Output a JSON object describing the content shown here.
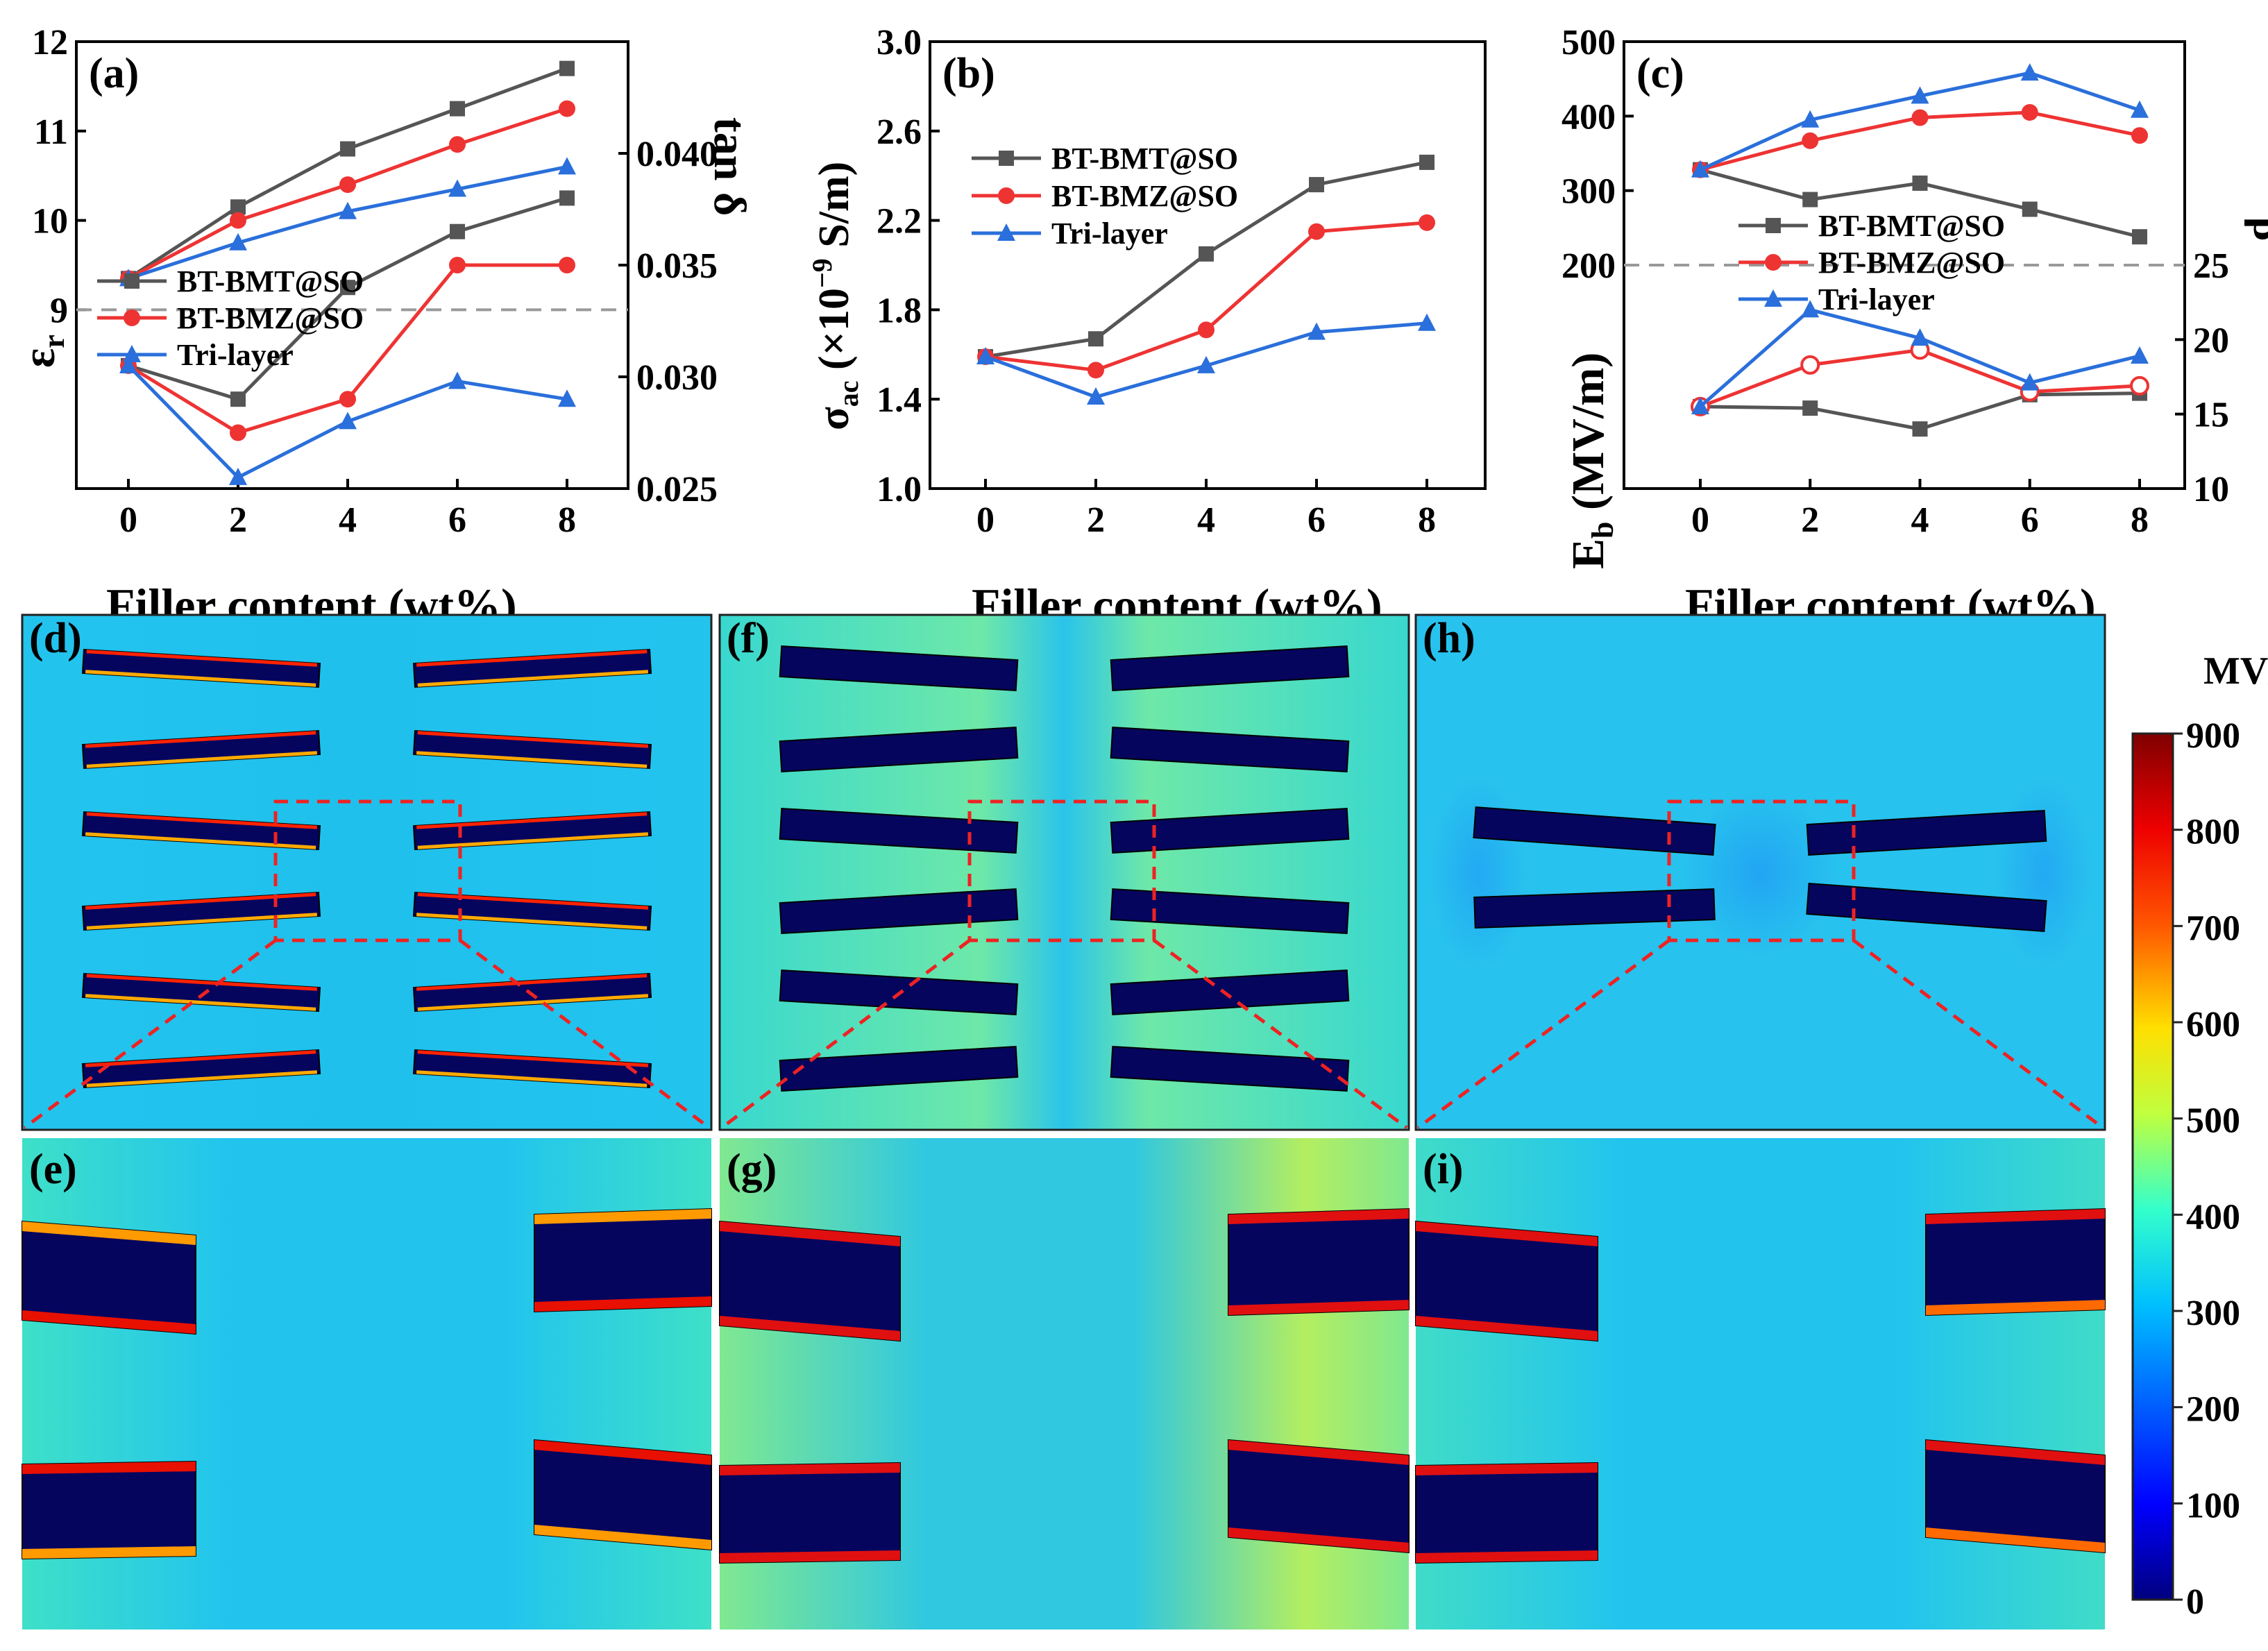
{
  "colors": {
    "bmt": "#555555",
    "bmz": "#ee3333",
    "tri": "#2a6fdb",
    "cmap": [
      "#00007f",
      "#0000ff",
      "#007fff",
      "#00ffff",
      "#7fff7f",
      "#ffff00",
      "#ff7f00",
      "#ff0000",
      "#7f0000"
    ]
  },
  "chart_data": [
    {
      "type": "line",
      "panel": "(a)",
      "xlabel": "Filler content (wt%)",
      "ylabel_left_main": "ε",
      "ylabel_left_sub": "r",
      "ylabel_right": "tan δ",
      "x": [
        0,
        2,
        4,
        6,
        8
      ],
      "xticks": [
        "0",
        "2",
        "4",
        "6",
        "8"
      ],
      "left_ylim": [
        7,
        12
      ],
      "left_ticks": [
        "9",
        "10",
        "11",
        "12"
      ],
      "left_tick_values": [
        9,
        10,
        11,
        12
      ],
      "right_ylim": [
        0.025,
        0.045
      ],
      "right_ticks": [
        "0.040",
        "0.035",
        "0.030",
        "0.025"
      ],
      "right_tick_values": [
        0.04,
        0.035,
        0.03,
        0.025
      ],
      "divider_y_left": 9,
      "series": [
        {
          "name": "BT-BMT@SO",
          "axis": "left",
          "marker": "square",
          "values": [
            9.35,
            10.15,
            10.8,
            11.25,
            11.7
          ]
        },
        {
          "name": "BT-BMZ@SO",
          "axis": "left",
          "marker": "circle",
          "values": [
            9.35,
            10.0,
            10.4,
            10.85,
            11.25
          ]
        },
        {
          "name": "Tri-layer",
          "axis": "left",
          "marker": "triangle",
          "values": [
            9.35,
            9.75,
            10.1,
            10.35,
            10.6
          ]
        },
        {
          "name": "BT-BMT@SO",
          "axis": "right",
          "marker": "square",
          "values": [
            0.0305,
            0.029,
            0.034,
            0.0365,
            0.038
          ]
        },
        {
          "name": "BT-BMZ@SO",
          "axis": "right",
          "marker": "circle",
          "values": [
            0.0305,
            0.0275,
            0.029,
            0.035,
            0.035
          ]
        },
        {
          "name": "Tri-layer",
          "axis": "right",
          "marker": "triangle",
          "values": [
            0.0305,
            0.0255,
            0.028,
            0.0298,
            0.029
          ]
        }
      ],
      "legend": [
        "BT-BMT@SO",
        "BT-BMZ@SO",
        "Tri-layer"
      ]
    },
    {
      "type": "line",
      "panel": "(b)",
      "xlabel": "Filler content (wt%)",
      "ylabel_main": "σ",
      "ylabel_sub": "ac",
      "ylabel_rest": " (×10",
      "ylabel_sup": "−9",
      "ylabel_end": " S/m)",
      "x": [
        0,
        2,
        4,
        6,
        8
      ],
      "xticks": [
        "0",
        "2",
        "4",
        "6",
        "8"
      ],
      "ylim": [
        1.0,
        3.0
      ],
      "yticks": [
        "1.0",
        "1.4",
        "1.8",
        "2.2",
        "2.6",
        "3.0"
      ],
      "ytick_values": [
        1.0,
        1.4,
        1.8,
        2.2,
        2.6,
        3.0
      ],
      "series": [
        {
          "name": "BT-BMT@SO",
          "marker": "square",
          "values": [
            1.59,
            1.67,
            2.05,
            2.36,
            2.46
          ]
        },
        {
          "name": "BT-BMZ@SO",
          "marker": "circle",
          "values": [
            1.59,
            1.53,
            1.71,
            2.15,
            2.19
          ]
        },
        {
          "name": "Tri-layer",
          "marker": "triangle",
          "values": [
            1.59,
            1.41,
            1.55,
            1.7,
            1.74
          ]
        }
      ],
      "legend": [
        "BT-BMT@SO",
        "BT-BMZ@SO",
        "Tri-layer"
      ]
    },
    {
      "type": "line",
      "panel": "(c)",
      "xlabel": "Filler content (wt%)",
      "ylabel_left_main": "E",
      "ylabel_left_sub": "b",
      "ylabel_left_rest": " (MV/m)",
      "ylabel_right": "β",
      "x": [
        0,
        2,
        4,
        6,
        8
      ],
      "xticks": [
        "0",
        "2",
        "4",
        "6",
        "8"
      ],
      "left_ylim": [
        -100,
        500
      ],
      "left_ticks": [
        "200",
        "300",
        "400",
        "500"
      ],
      "left_tick_values": [
        200,
        300,
        400,
        500
      ],
      "right_ylim": [
        10,
        40
      ],
      "right_ticks": [
        "10",
        "15",
        "20",
        "25"
      ],
      "right_tick_values": [
        10,
        15,
        20,
        25
      ],
      "divider_y_left": 200,
      "series": [
        {
          "name": "BT-BMT@SO",
          "axis": "left",
          "marker": "square",
          "values": [
            328,
            288,
            310,
            275,
            238
          ]
        },
        {
          "name": "BT-BMZ@SO",
          "axis": "left",
          "marker": "circle",
          "values": [
            328,
            367,
            398,
            405,
            374
          ]
        },
        {
          "name": "Tri-layer",
          "axis": "left",
          "marker": "triangle",
          "values": [
            328,
            395,
            427,
            458,
            408
          ]
        },
        {
          "name": "BT-BMT@SO",
          "axis": "right",
          "marker": "square",
          "values": [
            15.5,
            15.4,
            14.0,
            16.3,
            16.4
          ]
        },
        {
          "name": "BT-BMZ@SO",
          "axis": "right",
          "marker": "circle",
          "open": true,
          "values": [
            15.5,
            18.3,
            19.3,
            16.5,
            16.9
          ]
        },
        {
          "name": "Tri-layer",
          "axis": "right",
          "marker": "triangle",
          "values": [
            15.5,
            22.0,
            20.1,
            17.1,
            18.9
          ]
        }
      ],
      "legend": [
        "BT-BMT@SO",
        "BT-BMZ@SO",
        "Tri-layer"
      ]
    }
  ],
  "fields": {
    "panels": [
      "(d)",
      "(e)",
      "(f)",
      "(g)",
      "(h)",
      "(i)"
    ],
    "colorbar": {
      "title": "MV/m",
      "min": 0,
      "max": 900,
      "ticks": [
        "900",
        "800",
        "700",
        "600",
        "500",
        "400",
        "300",
        "200",
        "100",
        "0"
      ]
    }
  }
}
